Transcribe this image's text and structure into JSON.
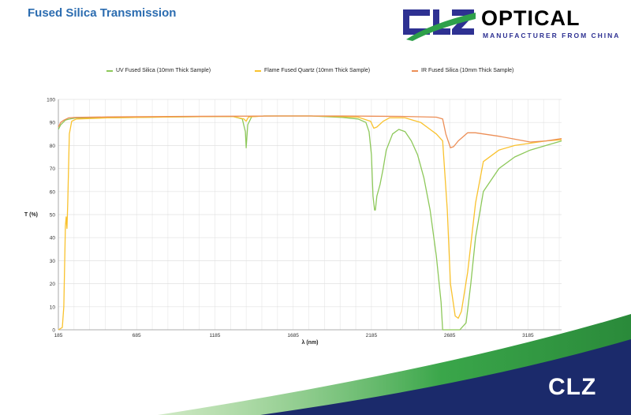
{
  "page": {
    "title": "Fused Silica Transmission"
  },
  "logo": {
    "brand_letters": "CLZ",
    "wordmark": "OPTICAL",
    "tagline": "MANUFACTURER FROM CHINA",
    "corner_mark": "CLZ"
  },
  "colors": {
    "title_blue": "#2b6cb0",
    "logo_blue": "#2e3192",
    "logo_green": "#2ea04a",
    "corner_navy": "#1b2a6b"
  },
  "chart_data": {
    "type": "line",
    "title": "",
    "xlabel": "λ (nm)",
    "ylabel": "T (%)",
    "xlim": [
      185,
      3400
    ],
    "ylim": [
      0,
      100
    ],
    "x_ticks": [
      185,
      685,
      1185,
      1685,
      2185,
      2685,
      3185
    ],
    "y_ticks": [
      0,
      10,
      20,
      30,
      40,
      50,
      60,
      70,
      80,
      90,
      100
    ],
    "grid": true,
    "legend_position": "top",
    "series": [
      {
        "name": "UV Fused Silica (10mm Thick Sample)",
        "color": "#8dc85a",
        "x": [
          185,
          200,
          215,
          230,
          245,
          260,
          300,
          500,
          900,
          1300,
          1360,
          1380,
          1385,
          1395,
          1420,
          1500,
          1800,
          2000,
          2100,
          2150,
          2170,
          2185,
          2195,
          2205,
          2210,
          2220,
          2240,
          2260,
          2280,
          2320,
          2360,
          2400,
          2440,
          2480,
          2520,
          2560,
          2600,
          2630,
          2640,
          2650,
          2700,
          2750,
          2790,
          2820,
          2850,
          2900,
          3000,
          3100,
          3200,
          3300,
          3400
        ],
        "y": [
          87,
          89,
          90,
          91,
          91.3,
          91.5,
          92,
          92,
          92.4,
          92.6,
          91.5,
          86,
          79,
          89,
          92.5,
          92.8,
          92.8,
          92.2,
          91.5,
          90,
          86,
          76,
          58,
          52,
          52,
          58,
          63,
          70,
          78,
          85,
          87,
          86,
          82,
          76,
          66,
          52,
          32,
          12,
          0,
          0,
          0,
          0,
          3,
          20,
          40,
          60,
          70,
          75,
          78,
          80,
          82
        ]
      },
      {
        "name": "Flame Fused Quartz (10mm Thick Sample)",
        "color": "#f9c22e",
        "x": [
          185,
          210,
          220,
          230,
          235,
          240,
          245,
          255,
          270,
          300,
          500,
          900,
          1300,
          1370,
          1385,
          1400,
          1500,
          1800,
          2000,
          2100,
          2180,
          2200,
          2220,
          2260,
          2300,
          2400,
          2500,
          2560,
          2600,
          2640,
          2670,
          2690,
          2720,
          2740,
          2760,
          2800,
          2850,
          2900,
          3000,
          3100,
          3200,
          3300,
          3400
        ],
        "y": [
          0,
          1,
          10,
          45,
          49,
          44,
          55,
          85,
          90.5,
          91.5,
          92,
          92.4,
          92.6,
          91.5,
          90.5,
          92.4,
          92.8,
          92.8,
          92.5,
          92.3,
          90.5,
          87.5,
          88,
          90.5,
          92,
          92,
          90,
          87,
          85,
          82,
          52,
          20,
          6,
          5,
          8,
          25,
          55,
          73,
          78,
          80,
          81,
          82,
          82.5
        ]
      },
      {
        "name": "IR Fused Silica (10mm Thick Sample)",
        "color": "#ec8e56",
        "x": [
          185,
          200,
          220,
          250,
          300,
          500,
          900,
          1300,
          1600,
          1800,
          2000,
          2200,
          2400,
          2600,
          2640,
          2660,
          2690,
          2710,
          2740,
          2800,
          2850,
          3000,
          3200,
          3300,
          3400
        ],
        "y": [
          88,
          90,
          91,
          92,
          92.2,
          92.4,
          92.6,
          92.7,
          92.8,
          92.8,
          92.8,
          92.7,
          92.6,
          92.3,
          91.5,
          85,
          79,
          79.5,
          82,
          85.5,
          85.5,
          84,
          81.5,
          82,
          83
        ]
      }
    ]
  }
}
